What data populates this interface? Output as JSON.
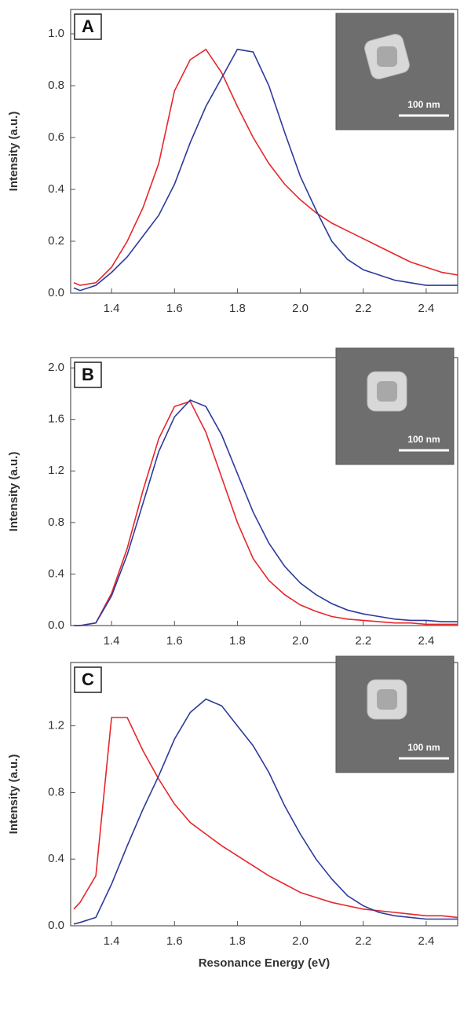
{
  "chart_data": [
    {
      "type": "line",
      "panel_label": "A",
      "ylabel": "Intensity (a.u.)",
      "inset_label": "100 nm",
      "x": [
        1.28,
        1.3,
        1.35,
        1.4,
        1.45,
        1.5,
        1.55,
        1.6,
        1.65,
        1.7,
        1.75,
        1.8,
        1.85,
        1.9,
        1.95,
        2.0,
        2.05,
        2.1,
        2.15,
        2.2,
        2.25,
        2.3,
        2.35,
        2.4,
        2.45,
        2.5
      ],
      "series": [
        {
          "color": "#e8262a",
          "values": [
            0.04,
            0.03,
            0.04,
            0.1,
            0.2,
            0.33,
            0.5,
            0.78,
            0.9,
            0.94,
            0.85,
            0.72,
            0.6,
            0.5,
            0.42,
            0.36,
            0.31,
            0.27,
            0.24,
            0.21,
            0.18,
            0.15,
            0.12,
            0.1,
            0.08,
            0.07
          ]
        },
        {
          "color": "#2e3a9c",
          "values": [
            0.02,
            0.01,
            0.03,
            0.08,
            0.14,
            0.22,
            0.3,
            0.42,
            0.58,
            0.72,
            0.83,
            0.94,
            0.93,
            0.8,
            0.62,
            0.45,
            0.32,
            0.2,
            0.13,
            0.09,
            0.07,
            0.05,
            0.04,
            0.03,
            0.03,
            0.03
          ]
        }
      ],
      "xlim": [
        1.27,
        2.5
      ],
      "ylim": [
        0,
        1.094
      ],
      "xticks": [
        1.4,
        1.6,
        1.8,
        {
          "value": 2.0,
          "label": "2.0"
        },
        2.2,
        2.4
      ],
      "yticks": [
        {
          "value": 0,
          "label": "0.0"
        },
        0.2,
        0.4,
        0.6,
        0.8,
        {
          "value": 1.0,
          "label": "1.0"
        }
      ]
    },
    {
      "type": "line",
      "panel_label": "B",
      "ylabel": "Intensity (a.u.)",
      "inset_label": "100 nm",
      "x": [
        1.28,
        1.3,
        1.35,
        1.4,
        1.45,
        1.5,
        1.55,
        1.6,
        1.65,
        1.7,
        1.75,
        1.8,
        1.85,
        1.9,
        1.95,
        2.0,
        2.05,
        2.1,
        2.15,
        2.2,
        2.25,
        2.3,
        2.35,
        2.4,
        2.45,
        2.5
      ],
      "series": [
        {
          "color": "#e8262a",
          "values": [
            0,
            0,
            0.02,
            0.25,
            0.6,
            1.05,
            1.45,
            1.7,
            1.74,
            1.5,
            1.15,
            0.8,
            0.52,
            0.35,
            0.24,
            0.16,
            0.11,
            0.07,
            0.05,
            0.04,
            0.03,
            0.02,
            0.02,
            0.01,
            0.01,
            0.01
          ]
        },
        {
          "color": "#2e3a9c",
          "values": [
            0,
            0,
            0.02,
            0.23,
            0.55,
            0.95,
            1.35,
            1.62,
            1.75,
            1.7,
            1.48,
            1.18,
            0.88,
            0.64,
            0.46,
            0.33,
            0.24,
            0.17,
            0.12,
            0.09,
            0.07,
            0.05,
            0.04,
            0.04,
            0.03,
            0.03
          ]
        }
      ],
      "xlim": [
        1.27,
        2.5
      ],
      "ylim": [
        0,
        2.08
      ],
      "xticks": [
        1.4,
        1.6,
        1.8,
        {
          "value": 2.0,
          "label": "2.0"
        },
        2.2,
        2.4
      ],
      "yticks": [
        {
          "value": 0,
          "label": "0.0"
        },
        0.4,
        0.8,
        1.2,
        1.6,
        {
          "value": 2.0,
          "label": "2.0"
        }
      ]
    },
    {
      "type": "line",
      "panel_label": "C",
      "ylabel": "Intensity (a.u.)",
      "inset_label": "100 nm",
      "xlabel": "Resonance Energy (eV)",
      "x": [
        1.28,
        1.3,
        1.35,
        1.4,
        1.45,
        1.5,
        1.55,
        1.6,
        1.65,
        1.7,
        1.75,
        1.8,
        1.85,
        1.9,
        1.95,
        2.0,
        2.05,
        2.1,
        2.15,
        2.2,
        2.25,
        2.3,
        2.35,
        2.4,
        2.45,
        2.5
      ],
      "series": [
        {
          "color": "#e8262a",
          "values": [
            0.1,
            0.14,
            0.3,
            1.25,
            1.25,
            1.05,
            0.88,
            0.73,
            0.62,
            0.55,
            0.48,
            0.42,
            0.36,
            0.3,
            0.25,
            0.2,
            0.17,
            0.14,
            0.12,
            0.1,
            0.09,
            0.08,
            0.07,
            0.06,
            0.06,
            0.05
          ]
        },
        {
          "color": "#2e3a9c",
          "values": [
            0.01,
            0.02,
            0.05,
            0.25,
            0.48,
            0.7,
            0.9,
            1.12,
            1.28,
            1.36,
            1.32,
            1.2,
            1.08,
            0.92,
            0.72,
            0.55,
            0.4,
            0.28,
            0.18,
            0.12,
            0.08,
            0.06,
            0.05,
            0.04,
            0.04,
            0.04
          ]
        }
      ],
      "xlim": [
        1.27,
        2.5
      ],
      "ylim": [
        0,
        1.58
      ],
      "xticks": [
        1.4,
        1.6,
        1.8,
        {
          "value": 2.0,
          "label": "2.0"
        },
        2.2,
        2.4
      ],
      "yticks": [
        {
          "value": 0,
          "label": "0.0"
        },
        0.4,
        0.8,
        1.2
      ]
    }
  ]
}
